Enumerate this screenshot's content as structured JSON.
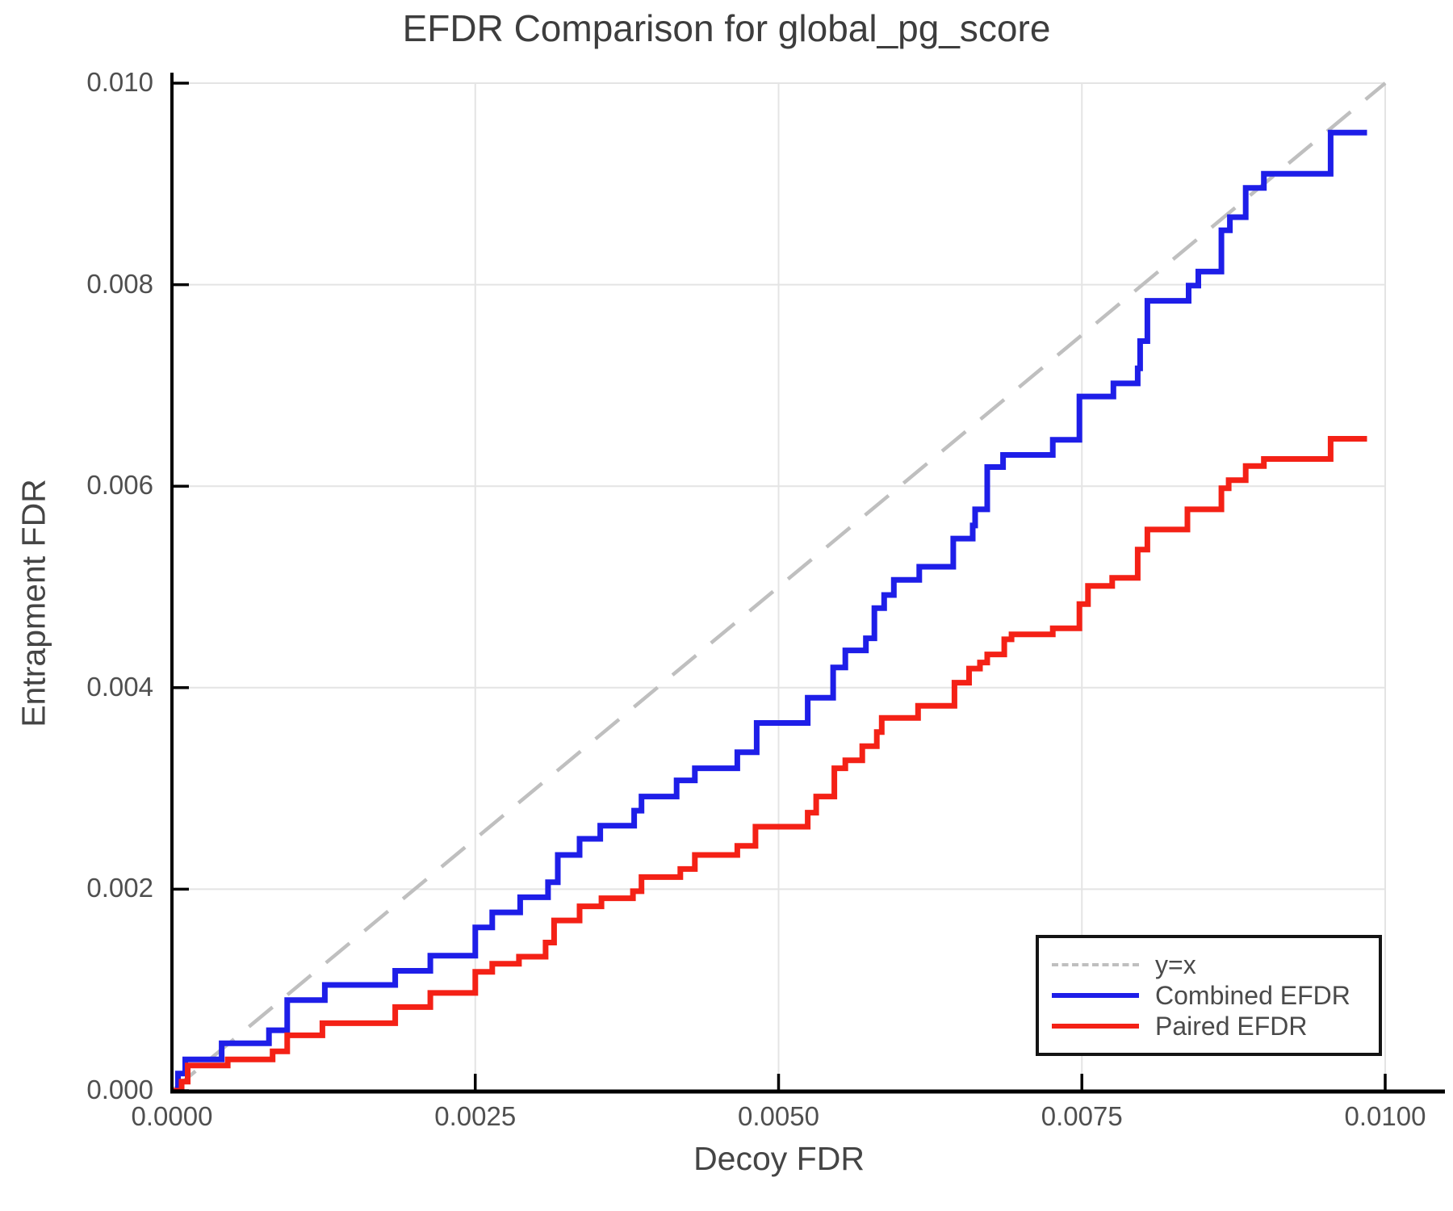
{
  "chart_data": {
    "type": "line",
    "title": "EFDR Comparison for global_pg_score",
    "xlabel": "Decoy FDR",
    "ylabel": "Entrapment FDR",
    "xlim": [
      0.0,
      0.01
    ],
    "ylim": [
      0.0,
      0.01
    ],
    "grid": true,
    "x_ticks": {
      "values": [
        0.0,
        0.0025,
        0.005,
        0.0075,
        0.01
      ],
      "labels": [
        "0.0000",
        "0.0025",
        "0.0050",
        "0.0075",
        "0.0100"
      ]
    },
    "y_ticks": {
      "values": [
        0.0,
        0.002,
        0.004,
        0.006,
        0.008,
        0.01
      ],
      "labels": [
        "0.000",
        "0.002",
        "0.004",
        "0.006",
        "0.008",
        "0.010"
      ]
    },
    "colors": {
      "identity_line": "#bfbfbf",
      "combined": "#1e1ee8",
      "paired": "#f42116",
      "grid": "#e4e4e4",
      "axis": "#000000"
    },
    "legend": {
      "position": "bottom-right",
      "entries": [
        {
          "label": "y=x",
          "style": "dashed",
          "color": "#bfbfbf"
        },
        {
          "label": "Combined EFDR",
          "style": "solid",
          "color": "#1e1ee8"
        },
        {
          "label": "Paired EFDR",
          "style": "solid",
          "color": "#f42116"
        }
      ]
    },
    "series": [
      {
        "name": "y=x",
        "mode": "line",
        "style": "dashed",
        "color": "#bfbfbf",
        "points": [
          [
            0.0,
            0.0
          ],
          [
            0.01,
            0.01
          ]
        ]
      },
      {
        "name": "Combined EFDR",
        "mode": "step",
        "style": "solid",
        "color": "#1e1ee8",
        "points": [
          [
            0.0,
            0.0
          ],
          [
            5e-05,
            0.00017
          ],
          [
            0.00011,
            0.00031
          ],
          [
            0.00041,
            0.00047
          ],
          [
            0.0008,
            0.0006
          ],
          [
            0.00095,
            0.0009
          ],
          [
            0.00126,
            0.00105
          ],
          [
            0.00184,
            0.00119
          ],
          [
            0.00213,
            0.00134
          ],
          [
            0.0025,
            0.00162
          ],
          [
            0.00264,
            0.00177
          ],
          [
            0.00287,
            0.00192
          ],
          [
            0.0031,
            0.00207
          ],
          [
            0.00318,
            0.00234
          ],
          [
            0.00336,
            0.0025
          ],
          [
            0.00353,
            0.00263
          ],
          [
            0.00381,
            0.00278
          ],
          [
            0.00387,
            0.00292
          ],
          [
            0.00416,
            0.00308
          ],
          [
            0.00431,
            0.0032
          ],
          [
            0.00466,
            0.00336
          ],
          [
            0.00482,
            0.00365
          ],
          [
            0.00524,
            0.0039
          ],
          [
            0.00545,
            0.0042
          ],
          [
            0.00555,
            0.00437
          ],
          [
            0.00572,
            0.00449
          ],
          [
            0.00579,
            0.00479
          ],
          [
            0.00587,
            0.00492
          ],
          [
            0.00595,
            0.00507
          ],
          [
            0.00616,
            0.0052
          ],
          [
            0.00644,
            0.00548
          ],
          [
            0.0066,
            0.00561
          ],
          [
            0.00662,
            0.00577
          ],
          [
            0.00672,
            0.00619
          ],
          [
            0.00685,
            0.00631
          ],
          [
            0.00726,
            0.00646
          ],
          [
            0.00748,
            0.00689
          ],
          [
            0.00776,
            0.00702
          ],
          [
            0.00796,
            0.00717
          ],
          [
            0.00798,
            0.00744
          ],
          [
            0.00804,
            0.00784
          ],
          [
            0.00838,
            0.00799
          ],
          [
            0.00846,
            0.00813
          ],
          [
            0.00865,
            0.00854
          ],
          [
            0.00872,
            0.00867
          ],
          [
            0.00885,
            0.00896
          ],
          [
            0.009,
            0.0091
          ],
          [
            0.00955,
            0.00951
          ],
          [
            0.00985,
            0.00951
          ]
        ]
      },
      {
        "name": "Paired EFDR",
        "mode": "step",
        "style": "solid",
        "color": "#f42116",
        "points": [
          [
            0.0,
            0.0
          ],
          [
            8e-05,
            9e-05
          ],
          [
            0.00013,
            0.00025
          ],
          [
            0.00046,
            0.00031
          ],
          [
            0.00083,
            0.00039
          ],
          [
            0.00095,
            0.00055
          ],
          [
            0.00124,
            0.00067
          ],
          [
            0.00184,
            0.00083
          ],
          [
            0.00213,
            0.00097
          ],
          [
            0.0025,
            0.00118
          ],
          [
            0.00264,
            0.00126
          ],
          [
            0.00286,
            0.00133
          ],
          [
            0.00308,
            0.00147
          ],
          [
            0.00315,
            0.00169
          ],
          [
            0.00336,
            0.00183
          ],
          [
            0.00354,
            0.00191
          ],
          [
            0.0038,
            0.00198
          ],
          [
            0.00387,
            0.00212
          ],
          [
            0.00419,
            0.0022
          ],
          [
            0.00431,
            0.00234
          ],
          [
            0.00466,
            0.00243
          ],
          [
            0.00481,
            0.00262
          ],
          [
            0.00524,
            0.00276
          ],
          [
            0.00531,
            0.00292
          ],
          [
            0.00546,
            0.0032
          ],
          [
            0.00555,
            0.00328
          ],
          [
            0.00569,
            0.00342
          ],
          [
            0.00581,
            0.00356
          ],
          [
            0.00585,
            0.0037
          ],
          [
            0.00615,
            0.00382
          ],
          [
            0.00645,
            0.00405
          ],
          [
            0.00657,
            0.00419
          ],
          [
            0.00666,
            0.00425
          ],
          [
            0.00672,
            0.00433
          ],
          [
            0.00686,
            0.00448
          ],
          [
            0.00692,
            0.00453
          ],
          [
            0.00726,
            0.00459
          ],
          [
            0.00748,
            0.00483
          ],
          [
            0.00755,
            0.00501
          ],
          [
            0.00775,
            0.00509
          ],
          [
            0.00796,
            0.00537
          ],
          [
            0.00804,
            0.00557
          ],
          [
            0.00837,
            0.00577
          ],
          [
            0.00865,
            0.00598
          ],
          [
            0.00871,
            0.00606
          ],
          [
            0.00885,
            0.0062
          ],
          [
            0.009,
            0.00627
          ],
          [
            0.00955,
            0.00647
          ],
          [
            0.00985,
            0.00647
          ]
        ]
      }
    ]
  }
}
